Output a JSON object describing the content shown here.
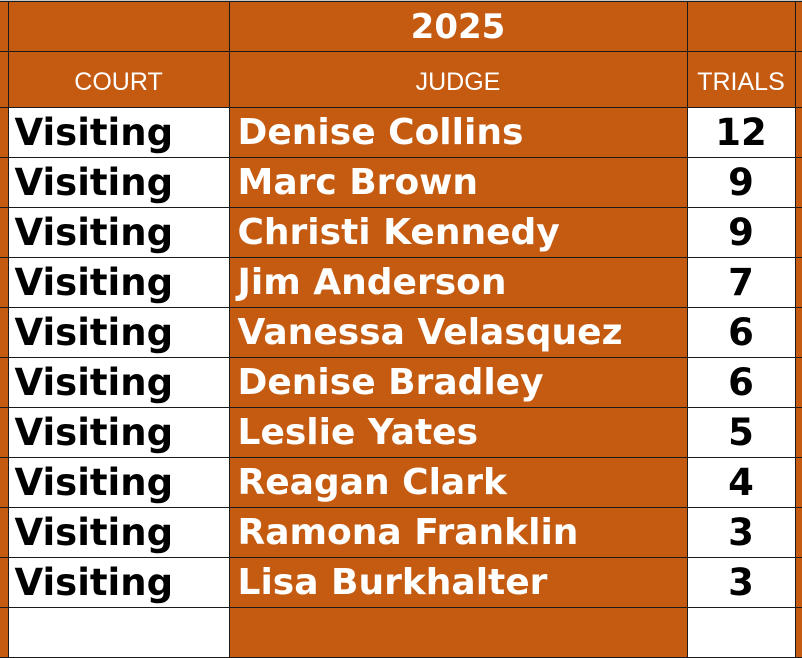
{
  "year": "2025",
  "headers": {
    "court": "COURT",
    "judge": "JUDGE",
    "trials": "TRIALS"
  },
  "colors": {
    "header_bg": "#C55A11",
    "cell_bg": "#FFFFFF"
  },
  "rows": [
    {
      "court": "Visiting",
      "judge": "Denise Collins",
      "trials": "12"
    },
    {
      "court": "Visiting",
      "judge": "Marc Brown",
      "trials": "9"
    },
    {
      "court": "Visiting",
      "judge": "Christi Kennedy",
      "trials": "9"
    },
    {
      "court": "Visiting",
      "judge": "Jim Anderson",
      "trials": "7"
    },
    {
      "court": "Visiting",
      "judge": "Vanessa Velasquez",
      "trials": "6"
    },
    {
      "court": "Visiting",
      "judge": "Denise Bradley",
      "trials": "6"
    },
    {
      "court": "Visiting",
      "judge": "Leslie Yates",
      "trials": "5"
    },
    {
      "court": "Visiting",
      "judge": "Reagan Clark",
      "trials": "4"
    },
    {
      "court": "Visiting",
      "judge": "Ramona Franklin",
      "trials": "3"
    },
    {
      "court": "Visiting",
      "judge": "Lisa Burkhalter",
      "trials": "3"
    }
  ]
}
